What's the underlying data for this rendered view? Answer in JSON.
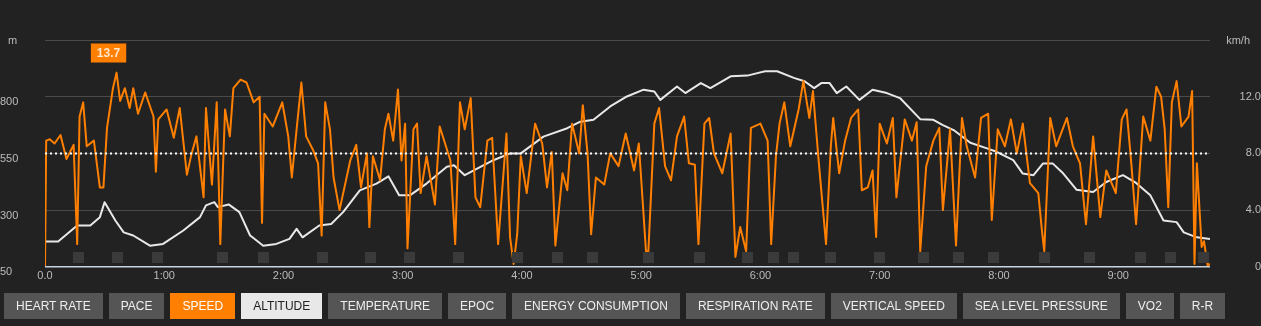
{
  "chart_data": {
    "type": "line",
    "ylabel": "m",
    "y2label": "km/h",
    "xlim": [
      0,
      9.77
    ],
    "xticks": [
      {
        "value": 0,
        "label": "0.0"
      },
      {
        "value": 1,
        "label": "1:00"
      },
      {
        "value": 2,
        "label": "2:00"
      },
      {
        "value": 3,
        "label": "3:00"
      },
      {
        "value": 4,
        "label": "4:00"
      },
      {
        "value": 5,
        "label": "5:00"
      },
      {
        "value": 6,
        "label": "6:00"
      },
      {
        "value": 7,
        "label": "7:00"
      },
      {
        "value": 8,
        "label": "8:00"
      },
      {
        "value": 9,
        "label": "9:00"
      }
    ],
    "ylim": [
      50,
      1050
    ],
    "yticks": [
      50,
      300,
      550,
      800,
      {
        "value": 1050,
        "label": null
      }
    ],
    "y2lim": [
      0,
      16
    ],
    "y2ticks": [
      {
        "value": 0,
        "label": "0"
      },
      {
        "value": 4,
        "label": "4.0"
      },
      {
        "value": 8,
        "label": "8.0"
      },
      {
        "value": 12,
        "label": "12.0"
      },
      {
        "value": 16,
        "label": null
      }
    ],
    "grid": "y",
    "legend": "bottom",
    "marker": "none",
    "line_style": "solid",
    "ref_lines": [
      {
        "axis": "y2",
        "value": 8,
        "color": "#ffffff",
        "line_style": "dotted"
      }
    ],
    "annotations": [
      "HEART RATE",
      "PACE",
      "TEMPERATURE",
      "EPOC",
      "ENERGY CONSUMPTION",
      "RESPIRATION RATE",
      "VERTICAL SPEED",
      "SEA LEVEL PRESSURE",
      "VO2",
      "R-R"
    ],
    "series": [
      {
        "name": "SPEED",
        "color": "#ff7f00",
        "axis": "y2",
        "x": [
          0,
          0.01,
          0.04,
          0.08,
          0.13,
          0.18,
          0.24,
          0.27,
          0.29,
          0.32,
          0.35,
          0.41,
          0.46,
          0.49,
          0.52,
          0.57,
          0.6,
          0.63,
          0.67,
          0.71,
          0.74,
          0.78,
          0.84,
          0.91,
          0.93,
          0.95,
          1.02,
          1.08,
          1.13,
          1.19,
          1.23,
          1.27,
          1.33,
          1.35,
          1.4,
          1.44,
          1.47,
          1.51,
          1.55,
          1.58,
          1.64,
          1.69,
          1.75,
          1.8,
          1.82,
          1.84,
          1.91,
          1.99,
          2.04,
          2.07,
          2.11,
          2.15,
          2.19,
          2.25,
          2.29,
          2.32,
          2.35,
          2.39,
          2.42,
          2.47,
          2.56,
          2.61,
          2.65,
          2.7,
          2.72,
          2.75,
          2.81,
          2.85,
          2.88,
          2.92,
          2.96,
          2.99,
          3.02,
          3.04,
          3.09,
          3.12,
          3.15,
          3.2,
          3.27,
          3.31,
          3.4,
          3.44,
          3.48,
          3.52,
          3.57,
          3.61,
          3.65,
          3.71,
          3.75,
          3.8,
          3.87,
          3.9,
          3.93,
          3.96,
          3.99,
          4.04,
          4.11,
          4.17,
          4.21,
          4.25,
          4.28,
          4.34,
          4.38,
          4.42,
          4.48,
          4.51,
          4.55,
          4.58,
          4.62,
          4.69,
          4.74,
          4.81,
          4.87,
          4.94,
          4.98,
          5.04,
          5.06,
          5.11,
          5.15,
          5.2,
          5.25,
          5.3,
          5.36,
          5.4,
          5.45,
          5.48,
          5.53,
          5.57,
          5.61,
          5.68,
          5.75,
          5.79,
          5.83,
          5.88,
          5.92,
          6,
          6.06,
          6.09,
          6.13,
          6.16,
          6.2,
          6.25,
          6.32,
          6.36,
          6.41,
          6.44,
          6.49,
          6.55,
          6.59,
          6.61,
          6.66,
          6.71,
          6.76,
          6.82,
          6.85,
          6.9,
          6.94,
          6.97,
          7,
          7.06,
          7.11,
          7.14,
          7.21,
          7.27,
          7.31,
          7.34,
          7.39,
          7.45,
          7.5,
          7.53,
          7.59,
          7.64,
          7.69,
          7.73,
          7.8,
          7.85,
          7.91,
          7.94,
          7.99,
          8.05,
          8.1,
          8.15,
          8.2,
          8.26,
          8.33,
          8.36,
          8.38,
          8.43,
          8.48,
          8.57,
          8.62,
          8.68,
          8.73,
          8.79,
          8.85,
          8.9,
          8.98,
          9.03,
          9.07,
          9.11,
          9.15,
          9.21,
          9.27,
          9.32,
          9.36,
          9.39,
          9.42,
          9.45,
          9.49,
          9.53,
          9.59,
          9.62,
          9.64,
          9.66,
          9.7,
          9.72,
          9.75,
          9.77
        ],
        "value_labels": [
          null,
          null,
          null,
          null,
          null,
          null,
          null,
          null,
          null,
          null,
          null,
          null,
          null,
          null,
          null,
          null,
          "13.7",
          null,
          null,
          null,
          null,
          null,
          null,
          null,
          null,
          null,
          null,
          null,
          null,
          null,
          null,
          null,
          null,
          null,
          null,
          null,
          null,
          null,
          null,
          null,
          null,
          null,
          null,
          null,
          null,
          null,
          null,
          null,
          null,
          null,
          null,
          null,
          null,
          null,
          null,
          null,
          null,
          null,
          null,
          null,
          null,
          null,
          null,
          null,
          null,
          null,
          null,
          null,
          null,
          null,
          null,
          null,
          null,
          null,
          null,
          null,
          null,
          null,
          null,
          null,
          null,
          null,
          null,
          null,
          null,
          null,
          null,
          null,
          null,
          null,
          null,
          null,
          null,
          null,
          null,
          null,
          null,
          null,
          null,
          null,
          null,
          null,
          null,
          null,
          null,
          null,
          null,
          null,
          null,
          null,
          null,
          null,
          null,
          null,
          null,
          null,
          null,
          null,
          null,
          null,
          null,
          null,
          null,
          null,
          null,
          null,
          null,
          null,
          null,
          null,
          null,
          null,
          null,
          null,
          null,
          null,
          null,
          null,
          null,
          null,
          null,
          null,
          null,
          null,
          null,
          null,
          null,
          null,
          null,
          null,
          null,
          null,
          null,
          null,
          null,
          null,
          null,
          null,
          null,
          null,
          null,
          null,
          null,
          null,
          null,
          null,
          null,
          null,
          null,
          null,
          null,
          null,
          null,
          null,
          null,
          null,
          null,
          null,
          null,
          null,
          null,
          null,
          null,
          null,
          null,
          null,
          null,
          null,
          null,
          null,
          null,
          null,
          null,
          null,
          null,
          null,
          null,
          null,
          null,
          null,
          null,
          null,
          null,
          null,
          null,
          null,
          null,
          null,
          null,
          null,
          null,
          null,
          null,
          null,
          null,
          null,
          null,
          null
        ],
        "values": [
          0,
          8.9,
          9,
          8.7,
          9.3,
          7.6,
          8.6,
          1.6,
          10.6,
          11.6,
          8.5,
          8.9,
          5.6,
          5.6,
          9.8,
          12.6,
          13.7,
          11.7,
          12.6,
          11.2,
          12.6,
          10.8,
          12.3,
          10.6,
          6.7,
          10.4,
          11.1,
          9.1,
          11.2,
          6.5,
          8,
          9.2,
          4.9,
          11.2,
          5.8,
          11.6,
          1.6,
          11.1,
          9.2,
          12.6,
          13.2,
          13,
          11.6,
          12,
          3.1,
          10.8,
          9.9,
          11.6,
          9.2,
          6.3,
          9.7,
          13,
          9.2,
          8.2,
          7.3,
          2.2,
          11.6,
          9.7,
          6.3,
          4,
          7.5,
          8.6,
          5.6,
          8,
          2.8,
          7.8,
          6.1,
          9.7,
          10.8,
          8.9,
          12.5,
          7.5,
          10.1,
          1.3,
          9.7,
          10.1,
          5.2,
          7.8,
          4.4,
          9.9,
          7.5,
          1.6,
          11.6,
          9.7,
          11.9,
          4.9,
          4.2,
          8.9,
          9.1,
          1.6,
          9.4,
          2.1,
          0.2,
          2.3,
          7.8,
          5.2,
          10.1,
          8.7,
          5.6,
          8.1,
          1.5,
          6.6,
          5.4,
          10.1,
          8,
          11.4,
          8,
          2.3,
          6.3,
          5.8,
          8,
          7.1,
          9.4,
          6.8,
          8.7,
          1.1,
          1.1,
          10.1,
          11.2,
          7.1,
          6.1,
          9.2,
          10.6,
          7.3,
          7.2,
          1.6,
          10.1,
          10.5,
          8,
          6.6,
          9.4,
          0.7,
          2.8,
          1.1,
          9.8,
          10.1,
          8.9,
          1.6,
          7.8,
          10.1,
          11.6,
          8.5,
          11.1,
          13.1,
          10.5,
          12.4,
          7.3,
          1.6,
          8.5,
          10.5,
          6.6,
          8.9,
          10.5,
          11.1,
          5.4,
          5.6,
          6.8,
          2.1,
          10.1,
          8.7,
          10.5,
          4.9,
          10.4,
          8.9,
          10.2,
          1.1,
          7.1,
          8.9,
          9.8,
          4,
          9.7,
          1.5,
          10.5,
          8.5,
          6.3,
          10.5,
          10.8,
          3.3,
          9.7,
          8.5,
          10.4,
          8,
          10.1,
          5.9,
          5.2,
          2.6,
          1.1,
          10.5,
          8.5,
          10.5,
          8.5,
          7.3,
          3,
          9.2,
          3.5,
          6.8,
          5.2,
          10.4,
          11.1,
          7.3,
          3,
          10.6,
          8.9,
          12.7,
          12,
          9.7,
          4.2,
          11.6,
          13.1,
          9.9,
          10.6,
          12.4,
          0.2,
          7.3,
          1.4,
          1.8,
          0.1,
          0.2
        ]
      },
      {
        "name": "ALTITUDE",
        "color": "#e8e8e8",
        "x": [
          0,
          0.11,
          0.27,
          0.38,
          0.46,
          0.5,
          0.59,
          0.66,
          0.74,
          0.88,
          0.99,
          1.16,
          1.3,
          1.35,
          1.42,
          1.45,
          1.54,
          1.63,
          1.72,
          1.83,
          1.94,
          2.05,
          2.11,
          2.16,
          2.3,
          2.4,
          2.5,
          2.64,
          2.78,
          2.88,
          2.97,
          3.06,
          3.2,
          3.37,
          3.43,
          3.52,
          3.76,
          3.9,
          3.99,
          4.18,
          4.38,
          4.49,
          4.6,
          4.74,
          4.88,
          5.02,
          5.11,
          5.16,
          5.3,
          5.37,
          5.5,
          5.58,
          5.75,
          5.89,
          6.04,
          6.14,
          6.28,
          6.37,
          6.45,
          6.51,
          6.58,
          6.64,
          6.72,
          6.83,
          6.94,
          7.06,
          7.17,
          7.34,
          7.45,
          7.53,
          7.62,
          7.76,
          7.9,
          7.98,
          8.12,
          8.2,
          8.29,
          8.37,
          8.45,
          8.54,
          8.65,
          8.79,
          8.9,
          9.04,
          9.15,
          9.27,
          9.38,
          9.49,
          9.55,
          9.66,
          9.77
        ],
        "values": [
          162,
          162,
          232,
          232,
          269,
          335,
          254,
          202,
          188,
          143,
          151,
          210,
          269,
          321,
          335,
          313,
          325,
          291,
          188,
          143,
          151,
          173,
          217,
          180,
          232,
          239,
          291,
          387,
          417,
          449,
          365,
          365,
          417,
          491,
          498,
          454,
          520,
          550,
          550,
          624,
          661,
          690,
          698,
          757,
          801,
          831,
          823,
          786,
          845,
          816,
          860,
          838,
          890,
          893,
          912,
          912,
          883,
          868,
          838,
          860,
          860,
          816,
          845,
          786,
          831,
          816,
          794,
          701,
          698,
          675,
          653,
          597,
          572,
          557,
          520,
          461,
          454,
          506,
          506,
          461,
          390,
          380,
          424,
          454,
          420,
          365,
          254,
          247,
          202,
          180,
          173
        ]
      }
    ]
  }
}
